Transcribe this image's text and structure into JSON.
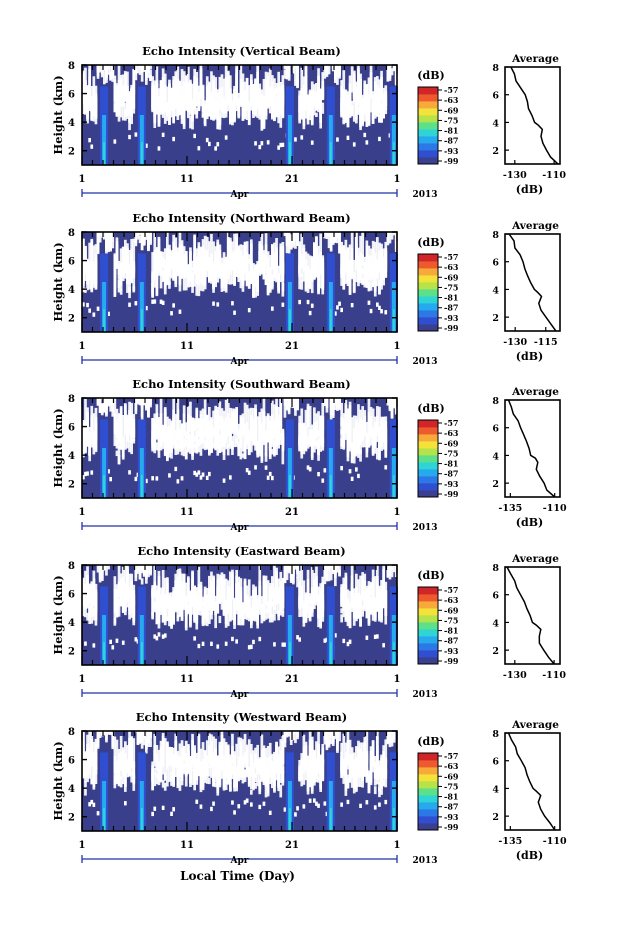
{
  "colors": {
    "background": "#ffffff",
    "low_echo": "#3a3f8c",
    "colormap": [
      "#3b3f8f",
      "#2f4fd0",
      "#2c78e6",
      "#27a9ee",
      "#2fd5d5",
      "#5ce08a",
      "#b6e34a",
      "#f2e23a",
      "#f7a93a",
      "#ee5a2e",
      "#d0262a"
    ]
  },
  "chart_data": [
    {
      "type": "heatmap",
      "title": "Echo Intensity (Vertical Beam)",
      "ylabel": "Height (km)",
      "ylim": [
        1,
        8
      ],
      "yticks": [
        "2",
        "4",
        "6",
        "8"
      ],
      "xticks": [
        "1",
        "11",
        "21",
        "1"
      ],
      "xaxis_month": "Apr",
      "xaxis_year": "2013",
      "colorbar": {
        "unit": "(dB)",
        "ticks": [
          "-57",
          "-63",
          "-69",
          "-75",
          "-81",
          "-87",
          "-93",
          "-99"
        ]
      },
      "average_profile": {
        "title": "Average",
        "xlabel": "(dB)",
        "xticks": [
          "-130",
          "-110"
        ],
        "xlim": [
          -135,
          -107
        ],
        "yticks": [
          "2",
          "4",
          "6",
          "8"
        ],
        "height": [
          1.0,
          1.5,
          2.0,
          2.5,
          3.0,
          3.5,
          3.8,
          4.0,
          4.5,
          5.0,
          5.5,
          6.0,
          6.5,
          7.0,
          7.5,
          8.0
        ],
        "value": [
          -108,
          -112,
          -114,
          -116,
          -117,
          -116,
          -118,
          -120,
          -121,
          -123,
          -124,
          -125,
          -127,
          -129,
          -130,
          -132
        ]
      }
    },
    {
      "type": "heatmap",
      "title": "Echo Intensity (Northward Beam)",
      "ylabel": "Height (km)",
      "ylim": [
        1,
        8
      ],
      "yticks": [
        "2",
        "4",
        "6",
        "8"
      ],
      "xticks": [
        "1",
        "11",
        "21",
        "1"
      ],
      "xaxis_month": "Apr",
      "xaxis_year": "2013",
      "colorbar": {
        "unit": "(dB)",
        "ticks": [
          "-57",
          "-63",
          "-69",
          "-75",
          "-81",
          "-87",
          "-93",
          "-99"
        ]
      },
      "average_profile": {
        "title": "Average",
        "xlabel": "(dB)",
        "xticks": [
          "-130",
          "-115"
        ],
        "xlim": [
          -135,
          -108
        ],
        "yticks": [
          "2",
          "4",
          "6",
          "8"
        ],
        "height": [
          1.0,
          1.5,
          2.0,
          2.5,
          3.0,
          3.5,
          3.8,
          4.0,
          4.5,
          5.0,
          5.5,
          6.0,
          6.5,
          7.0,
          7.5,
          8.0
        ],
        "value": [
          -110,
          -112,
          -115,
          -117,
          -118,
          -117,
          -119,
          -121,
          -122,
          -124,
          -125,
          -126,
          -128,
          -130,
          -131,
          -133
        ]
      }
    },
    {
      "type": "heatmap",
      "title": "Echo Intensity (Southward Beam)",
      "ylabel": "Height (km)",
      "ylim": [
        1,
        8
      ],
      "yticks": [
        "2",
        "4",
        "6",
        "8"
      ],
      "xticks": [
        "1",
        "11",
        "21",
        "1"
      ],
      "xaxis_month": "Apr",
      "xaxis_year": "2013",
      "colorbar": {
        "unit": "(dB)",
        "ticks": [
          "-57",
          "-63",
          "-69",
          "-75",
          "-81",
          "-87",
          "-93",
          "-99"
        ]
      },
      "average_profile": {
        "title": "Average",
        "xlabel": "(dB)",
        "xticks": [
          "-135",
          "-110"
        ],
        "xlim": [
          -138,
          -107
        ],
        "yticks": [
          "2",
          "4",
          "6",
          "8"
        ],
        "height": [
          1.0,
          1.5,
          2.0,
          2.5,
          3.0,
          3.5,
          3.8,
          4.0,
          4.5,
          5.0,
          5.5,
          6.0,
          6.5,
          7.0,
          7.5,
          8.0
        ],
        "value": [
          -110,
          -114,
          -116,
          -118,
          -120,
          -119,
          -121,
          -123,
          -124,
          -126,
          -127,
          -129,
          -131,
          -133,
          -134,
          -136
        ]
      }
    },
    {
      "type": "heatmap",
      "title": "Echo Intensity (Eastward Beam)",
      "ylabel": "Height (km)",
      "ylim": [
        1,
        8
      ],
      "yticks": [
        "2",
        "4",
        "6",
        "8"
      ],
      "xticks": [
        "1",
        "11",
        "21",
        "1"
      ],
      "xaxis_month": "Apr",
      "xaxis_year": "2013",
      "colorbar": {
        "unit": "(dB)",
        "ticks": [
          "-57",
          "-63",
          "-69",
          "-75",
          "-81",
          "-87",
          "-93",
          "-99"
        ]
      },
      "average_profile": {
        "title": "Average",
        "xlabel": "",
        "xticks": [
          "-130",
          "-110"
        ],
        "xlim": [
          -135,
          -107
        ],
        "yticks": [
          "2",
          "4",
          "6",
          "8"
        ],
        "height": [
          1.0,
          1.5,
          2.0,
          2.5,
          3.0,
          3.5,
          3.8,
          4.0,
          4.5,
          5.0,
          5.5,
          6.0,
          6.5,
          7.0,
          7.5,
          8.0
        ],
        "value": [
          -110,
          -113,
          -115,
          -117,
          -118,
          -117,
          -119,
          -121,
          -122,
          -124,
          -125,
          -127,
          -129,
          -130,
          -132,
          -134
        ]
      }
    },
    {
      "type": "heatmap",
      "title": "Echo Intensity (Westward Beam)",
      "ylabel": "Height (km)",
      "ylim": [
        1,
        8
      ],
      "yticks": [
        "2",
        "4",
        "6",
        "8"
      ],
      "xticks": [
        "1",
        "11",
        "21",
        "1"
      ],
      "xaxis_month": "Apr",
      "xaxis_year": "2013",
      "xlabel": "Local Time (Day)",
      "colorbar": {
        "unit": "(dB)",
        "ticks": [
          "-57",
          "-63",
          "-69",
          "-75",
          "-81",
          "-87",
          "-93",
          "-99"
        ]
      },
      "average_profile": {
        "title": "Average",
        "xlabel": "(dB)",
        "xticks": [
          "-135",
          "-110"
        ],
        "xlim": [
          -138,
          -107
        ],
        "yticks": [
          "2",
          "4",
          "6",
          "8"
        ],
        "height": [
          1.0,
          1.5,
          2.0,
          2.5,
          3.0,
          3.5,
          3.8,
          4.0,
          4.5,
          5.0,
          5.5,
          6.0,
          6.5,
          7.0,
          7.5,
          8.0
        ],
        "value": [
          -110,
          -113,
          -116,
          -118,
          -119,
          -118,
          -120,
          -122,
          -124,
          -126,
          -127,
          -129,
          -131,
          -132,
          -134,
          -136
        ]
      }
    }
  ]
}
